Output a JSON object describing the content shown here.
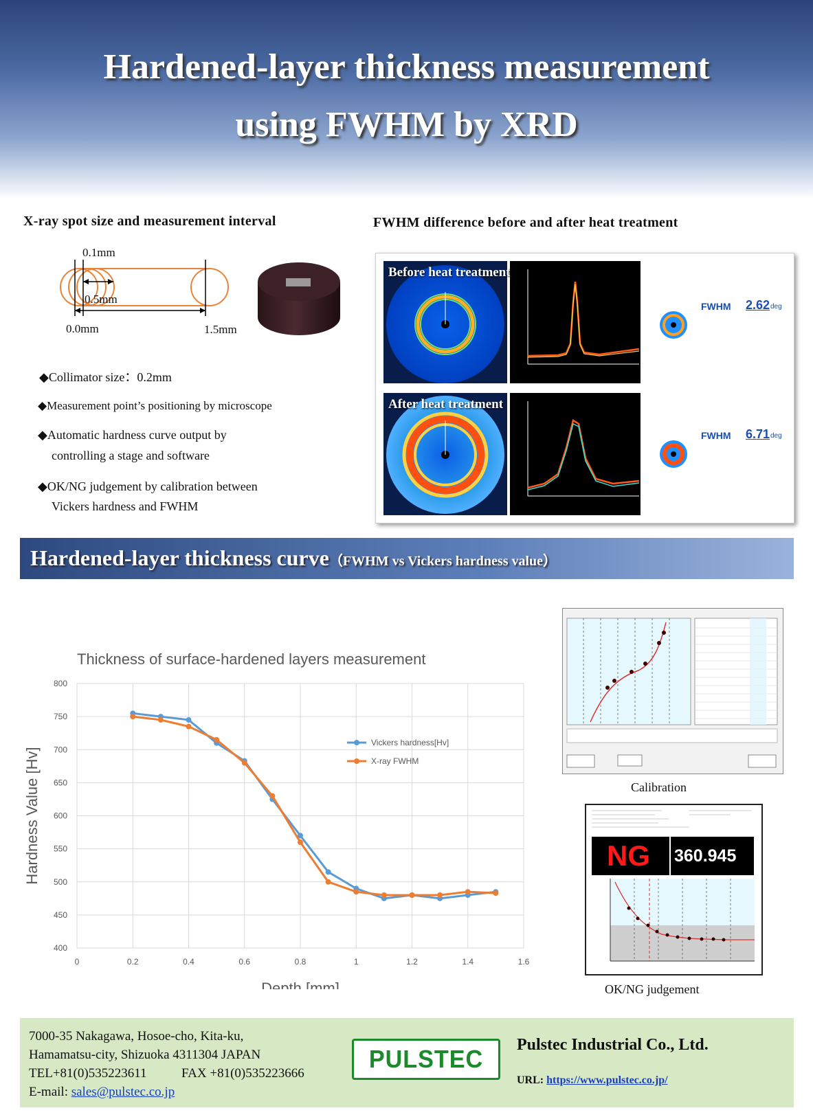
{
  "header": {
    "title_line1": "Hardened-layer thickness measurement",
    "title_line2": "using FWHM by XRD"
  },
  "spot": {
    "heading": "X-ray spot size and measurement interval",
    "label_01": "0.1mm",
    "label_05": "0.5mm",
    "label_00": "0.0mm",
    "label_15": "1.5mm"
  },
  "bullets": {
    "b1": "◆Collimator size：0.2mm",
    "b2": "◆Measurement point’s positioning by microscope",
    "b3a": "◆Automatic hardness curve output by",
    "b3b": "controlling a stage and software",
    "b4a": "◆OK/NG judgement by calibration between",
    "b4b": "Vickers hardness and FWHM"
  },
  "fwhm": {
    "heading": "FWHM difference before and after heat treatment",
    "before_label": "Before heat treatment",
    "after_label": "After heat treatment",
    "fwhm_word": "FWHM",
    "before_value": "2.62",
    "after_value": "6.71",
    "unit": "deg"
  },
  "banner": {
    "title": "Hardened-layer thickness curve",
    "subtitle": "（FWHM vs Vickers hardness value）"
  },
  "chart_data": {
    "type": "line",
    "title": "Thickness of surface-hardened layers measurement",
    "xlabel": "Depth [mm]",
    "ylabel": "Hardness Value [Hv]",
    "xlim": [
      0,
      1.6
    ],
    "ylim": [
      400,
      800
    ],
    "xticks": [
      "0",
      "0.2",
      "0.4",
      "0.6",
      "0.8",
      "1",
      "1.2",
      "1.4",
      "1.6"
    ],
    "yticks": [
      "400",
      "450",
      "500",
      "550",
      "600",
      "650",
      "700",
      "750",
      "800"
    ],
    "grid": true,
    "legend": "right",
    "x": [
      0.2,
      0.3,
      0.4,
      0.5,
      0.6,
      0.7,
      0.8,
      0.9,
      1.0,
      1.1,
      1.2,
      1.3,
      1.4,
      1.5
    ],
    "series": [
      {
        "name": "Vickers hardness[Hv]",
        "color": "#5b9bd5",
        "values": [
          755,
          750,
          745,
          710,
          683,
          625,
          570,
          515,
          490,
          475,
          480,
          475,
          480,
          485
        ]
      },
      {
        "name": "X-ray FWHM",
        "color": "#ed7d31",
        "values": [
          750,
          745,
          735,
          715,
          680,
          630,
          560,
          500,
          485,
          480,
          480,
          480,
          485,
          483
        ]
      }
    ]
  },
  "calibration": {
    "caption": "Calibration"
  },
  "judgement": {
    "result": "NG",
    "value": "360.945",
    "caption": "OK/NG judgement"
  },
  "footer": {
    "addr1": "7000-35 Nakagawa, Hosoe-cho, Kita-ku,",
    "addr2": "Hamamatsu-city, Shizuoka 4311304 JAPAN",
    "tel": "TEL+81(0)535223611",
    "fax": "FAX +81(0)535223666",
    "email_label": "E-mail: ",
    "email": "sales@pulstec.co.jp",
    "logo": "PULSTEC",
    "company": "Pulstec Industrial Co., Ltd.",
    "url_label": "URL: ",
    "url": "https://www.pulstec.co.jp/"
  }
}
